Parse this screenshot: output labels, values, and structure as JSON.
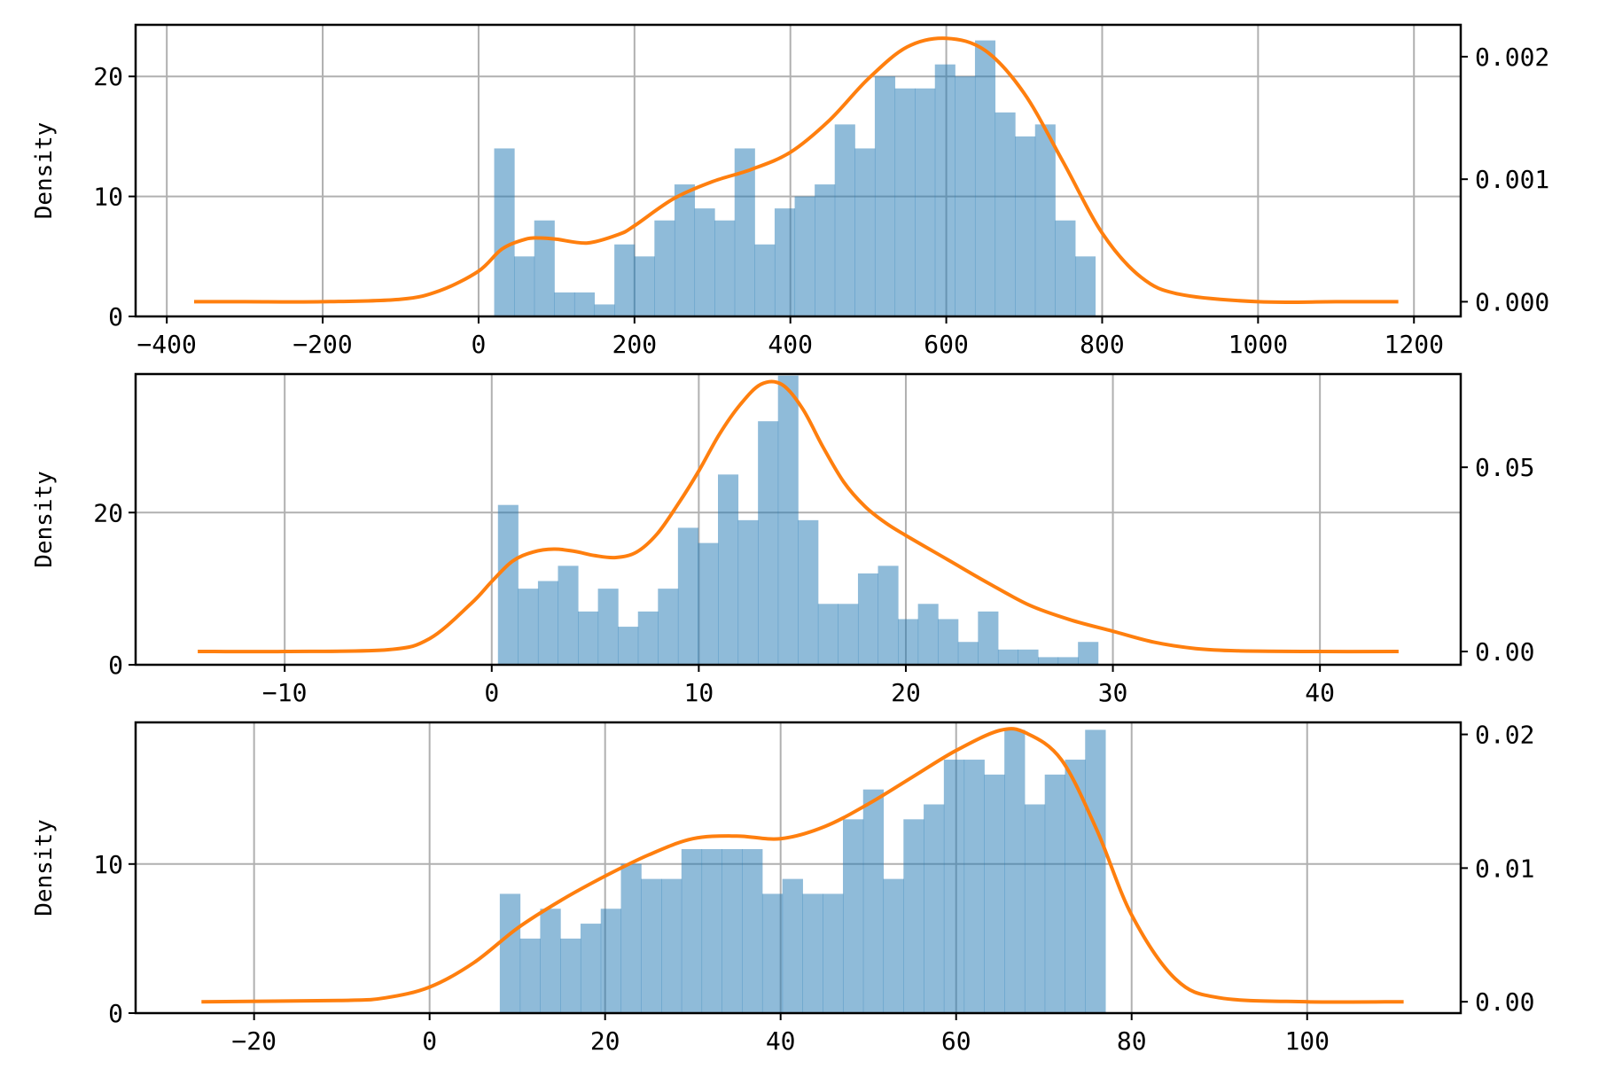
{
  "colors": {
    "hist": "#1f77b4",
    "kde": "#ff7f0e",
    "grid": "#b0b0b0"
  },
  "chart_data": [
    {
      "type": "histogram+kde",
      "ylabel": "Density",
      "grid": true,
      "xlim": [
        -440,
        1260
      ],
      "ylim": [
        0,
        24.3
      ],
      "y2lim": [
        -0.00012,
        0.00226
      ],
      "xticks": [
        -400,
        -200,
        0,
        200,
        400,
        600,
        800,
        1000,
        1200
      ],
      "xtick_labels": [
        "−400",
        "−200",
        "0",
        "200",
        "400",
        "600",
        "800",
        "1000",
        "1200"
      ],
      "yticks": [
        0,
        10,
        20
      ],
      "ytick_labels": [
        "0",
        "10",
        "20"
      ],
      "y2ticks": [
        0,
        0.001,
        0.002
      ],
      "y2tick_labels": [
        "0.000",
        "0.001",
        "0.002"
      ],
      "bin_start": 20,
      "bin_width": 25.7,
      "counts": [
        14,
        5,
        8,
        2,
        2,
        1,
        6,
        5,
        8,
        11,
        9,
        8,
        14,
        6,
        9,
        10,
        11,
        16,
        14,
        20,
        19,
        19,
        21,
        20,
        23,
        17,
        15,
        16,
        8,
        5
      ],
      "kde": {
        "x": [
          -365,
          -300,
          -200,
          -100,
          -50,
          0,
          30,
          60,
          80,
          100,
          140,
          180,
          200,
          250,
          300,
          350,
          400,
          450,
          500,
          550,
          600,
          650,
          700,
          750,
          800,
          850,
          900,
          1000,
          1100,
          1180
        ],
        "y": [
          0.0,
          0.0,
          0.0,
          2e-05,
          9e-05,
          0.00025,
          0.00043,
          0.00051,
          0.00052,
          0.00051,
          0.00048,
          0.00055,
          0.00062,
          0.00084,
          0.00098,
          0.00108,
          0.00122,
          0.00148,
          0.00182,
          0.00208,
          0.00215,
          0.00205,
          0.0017,
          0.00114,
          0.00056,
          0.0002,
          6e-05,
          0.0,
          0.0,
          0.0
        ]
      }
    },
    {
      "type": "histogram+kde",
      "ylabel": "Density",
      "grid": true,
      "xlim": [
        -17.2,
        46.8
      ],
      "ylim": [
        0,
        38.2
      ],
      "y2lim": [
        -0.0036,
        0.0753
      ],
      "xticks": [
        -10,
        0,
        10,
        20,
        30,
        40
      ],
      "xtick_labels": [
        "−10",
        "0",
        "10",
        "20",
        "30",
        "40"
      ],
      "yticks": [
        0,
        20
      ],
      "ytick_labels": [
        "0",
        "20"
      ],
      "y2ticks": [
        0,
        0.05
      ],
      "y2tick_labels": [
        "0.00",
        "0.05"
      ],
      "bin_start": 0.3,
      "bin_width": 0.966,
      "counts": [
        21,
        10,
        11,
        13,
        7,
        10,
        5,
        7,
        10,
        18,
        16,
        25,
        19,
        32,
        38,
        19,
        8,
        8,
        12,
        13,
        6,
        8,
        6,
        3,
        7,
        2,
        2,
        1,
        1,
        3
      ],
      "kde": {
        "x": [
          -14.2,
          -10,
          -5,
          -3,
          -1,
          0,
          1,
          2,
          3,
          4,
          5,
          6,
          7,
          8,
          9,
          10,
          11,
          12,
          13,
          14,
          15,
          16,
          17,
          18,
          19,
          20,
          22,
          24,
          26,
          28,
          30,
          32,
          34,
          36,
          40,
          43.8
        ],
        "y": [
          0.0,
          0.0,
          0.0005,
          0.0035,
          0.013,
          0.019,
          0.0245,
          0.027,
          0.0278,
          0.0272,
          0.026,
          0.0255,
          0.027,
          0.032,
          0.04,
          0.049,
          0.059,
          0.067,
          0.0725,
          0.0725,
          0.066,
          0.0555,
          0.046,
          0.0395,
          0.035,
          0.0315,
          0.025,
          0.0185,
          0.0125,
          0.0085,
          0.0055,
          0.0025,
          0.0008,
          0.0002,
          0.0,
          0.0
        ]
      }
    },
    {
      "type": "histogram+kde",
      "ylabel": "Density",
      "grid": true,
      "xlim": [
        -33.5,
        117.5
      ],
      "ylim": [
        0,
        19.5
      ],
      "y2lim": [
        -0.00085,
        0.0209
      ],
      "xticks": [
        -20,
        0,
        20,
        40,
        60,
        80,
        100
      ],
      "xtick_labels": [
        "−20",
        "0",
        "20",
        "40",
        "60",
        "80",
        "100"
      ],
      "yticks": [
        0,
        10
      ],
      "ytick_labels": [
        "0",
        "10"
      ],
      "y2ticks": [
        0,
        0.01,
        0.02
      ],
      "y2tick_labels": [
        "0.00",
        "0.01",
        "0.02"
      ],
      "bin_start": 8,
      "bin_width": 2.3,
      "counts": [
        8,
        5,
        7,
        5,
        6,
        7,
        10,
        9,
        9,
        11,
        11,
        11,
        11,
        8,
        9,
        8,
        8,
        13,
        15,
        9,
        13,
        14,
        17,
        17,
        16,
        19,
        14,
        16,
        17,
        19
      ],
      "kde": {
        "x": [
          -26,
          -10,
          -5,
          0,
          5,
          10,
          15,
          20,
          25,
          30,
          35,
          40,
          45,
          50,
          55,
          60,
          65,
          68,
          72,
          76,
          80,
          85,
          90,
          100,
          111
        ],
        "y": [
          0.0,
          0.0001,
          0.0003,
          0.0011,
          0.0029,
          0.0055,
          0.0076,
          0.0094,
          0.011,
          0.0122,
          0.0124,
          0.0122,
          0.0131,
          0.0148,
          0.0168,
          0.0188,
          0.0203,
          0.0201,
          0.0181,
          0.0129,
          0.0065,
          0.0017,
          0.0003,
          0.0,
          0.0
        ]
      }
    }
  ]
}
